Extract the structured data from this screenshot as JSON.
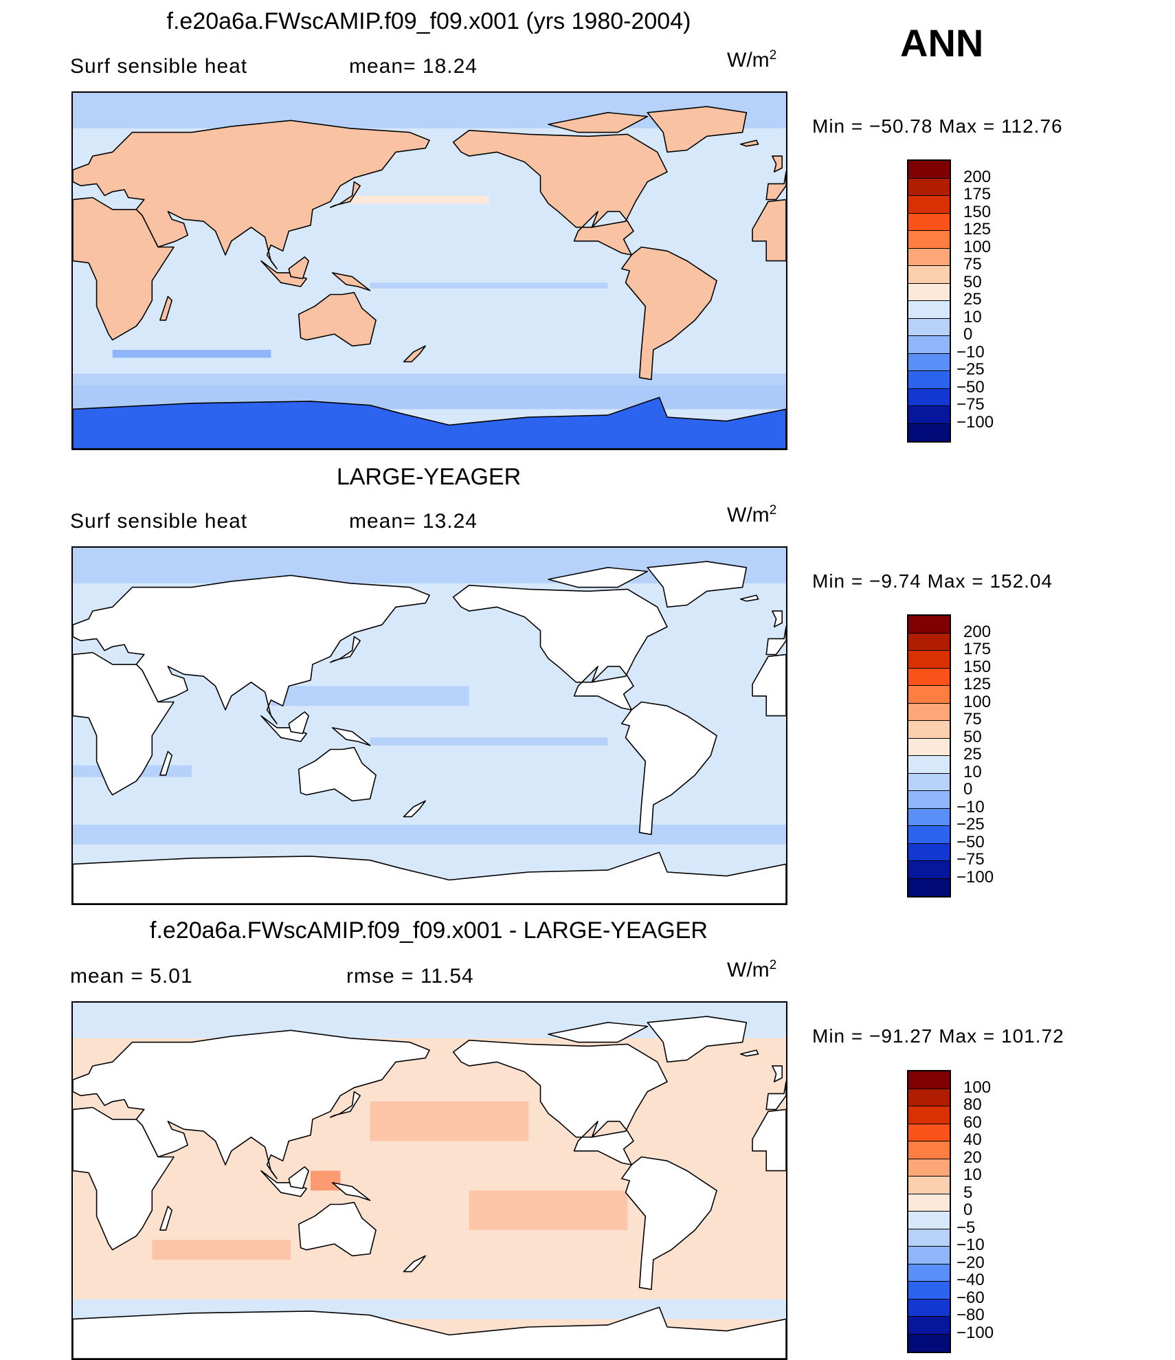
{
  "season": "ANN",
  "units_base": "W/m",
  "units_exp": "2",
  "panels": [
    {
      "title": "f.e20a6a.FWscAMIP.f09_f09.x001 (yrs 1980-2004)",
      "left_text": "Surf  sensible  heat",
      "mid_text": "mean=   18.24",
      "minmax": "Min  =  −50.78  Max  =  112.76",
      "colorbar": {
        "labels": [
          "200",
          "175",
          "150",
          "125",
          "100",
          "75",
          "50",
          "25",
          "10",
          "0",
          "−10",
          "−25",
          "−50",
          "−75",
          "−100"
        ],
        "colors": [
          "#7f0000",
          "#b01d00",
          "#d93100",
          "#fa5219",
          "#fd7e40",
          "#fda678",
          "#fccfae",
          "#fde9d9",
          "#d7e8fb",
          "#b6d2fb",
          "#8fb6fa",
          "#5a8ff7",
          "#2c64ef",
          "#1338d2",
          "#06179e",
          "#000a78"
        ]
      },
      "map": {
        "ocean": "#d7e8fb",
        "land": "#f9c3a3",
        "antarctica": "#2c64ef",
        "arctic": "#b6d2fb",
        "mode": "full"
      }
    },
    {
      "title": "LARGE-YEAGER",
      "left_text": "Surf  sensible  heat",
      "mid_text": "mean=   13.24",
      "minmax": "Min  =   −9.74  Max  =  152.04",
      "colorbar": {
        "labels": [
          "200",
          "175",
          "150",
          "125",
          "100",
          "75",
          "50",
          "25",
          "10",
          "0",
          "−10",
          "−25",
          "−50",
          "−75",
          "−100"
        ],
        "colors": [
          "#7f0000",
          "#b01d00",
          "#d93100",
          "#fa5219",
          "#fd7e40",
          "#fda678",
          "#fccfae",
          "#fde9d9",
          "#d7e8fb",
          "#b6d2fb",
          "#8fb6fa",
          "#5a8ff7",
          "#2c64ef",
          "#1338d2",
          "#06179e",
          "#000a78"
        ]
      },
      "map": {
        "ocean": "#d7e8fb",
        "land": "#ffffff",
        "antarctica": "#ffffff",
        "arctic": "#b6d2fb",
        "mode": "ocean"
      }
    },
    {
      "title": "f.e20a6a.FWscAMIP.f09_f09.x001 - LARGE-YEAGER",
      "left_text": "mean  =       5.01",
      "mid_text": "rmse  =     11.54",
      "minmax": "Min  =  −91.27  Max  =  101.72",
      "colorbar": {
        "labels": [
          "100",
          "80",
          "60",
          "40",
          "20",
          "10",
          "5",
          "0",
          "−5",
          "−10",
          "−20",
          "−40",
          "−60",
          "−80",
          "−100"
        ],
        "colors": [
          "#7f0000",
          "#b01d00",
          "#d93100",
          "#fa5219",
          "#fd7e40",
          "#fda678",
          "#fccfae",
          "#fde9d9",
          "#d7e8fb",
          "#b6d2fb",
          "#8fb6fa",
          "#5a8ff7",
          "#2c64ef",
          "#1338d2",
          "#06179e",
          "#000a78"
        ]
      },
      "map": {
        "ocean": "#fde1cf",
        "land": "#ffffff",
        "antarctica": "#ffffff",
        "arctic": "#d7e8fb",
        "mode": "diff"
      }
    }
  ]
}
